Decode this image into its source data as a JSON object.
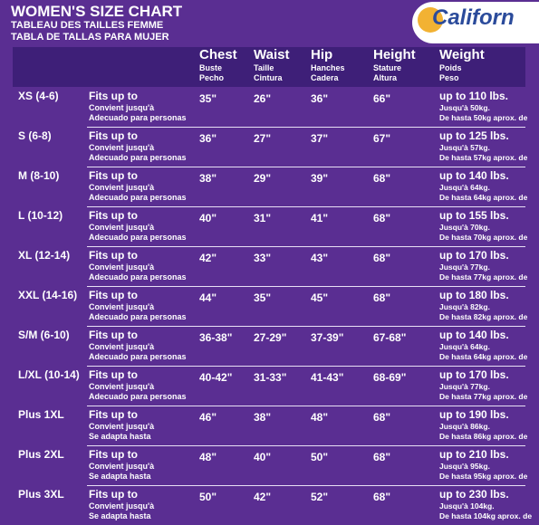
{
  "header": {
    "title": "WOMEN'S SIZE CHART",
    "subtitle_fr": "TABLEAU DES TAILLES FEMME",
    "subtitle_es": "TABLA DE TALLAS PARA MUJER",
    "logo": "Californ"
  },
  "columns": [
    {
      "name": "Chest",
      "fr": "Buste",
      "es": "Pecho"
    },
    {
      "name": "Waist",
      "fr": "Taille",
      "es": "Cintura"
    },
    {
      "name": "Hip",
      "fr": "Hanches",
      "es": "Cadera"
    },
    {
      "name": "Height",
      "fr": "Stature",
      "es": "Altura"
    },
    {
      "name": "Weight",
      "fr": "Poids",
      "es": "Peso"
    }
  ],
  "rows": [
    {
      "size": "XS (4-6)",
      "fits": [
        "Fits up to",
        "Convient jusqu'à",
        "Adecuado para personas"
      ],
      "chest": "35\"",
      "waist": "26\"",
      "hip": "36\"",
      "height": "66\"",
      "weight": [
        "up to 110 lbs.",
        "Jusqu'à 50kg.",
        "De hasta 50kg aprox. de"
      ]
    },
    {
      "size": "S (6-8)",
      "fits": [
        "Fits up to",
        "Convient jusqu'à",
        "Adecuado para personas"
      ],
      "chest": "36\"",
      "waist": "27\"",
      "hip": "37\"",
      "height": "67\"",
      "weight": [
        "up to 125 lbs.",
        "Jusqu'à 57kg.",
        "De hasta 57kg aprox. de"
      ]
    },
    {
      "size": "M (8-10)",
      "fits": [
        "Fits up to",
        "Convient jusqu'à",
        "Adecuado para personas"
      ],
      "chest": "38\"",
      "waist": "29\"",
      "hip": "39\"",
      "height": "68\"",
      "weight": [
        "up to 140 lbs.",
        "Jusqu'à 64kg.",
        "De hasta 64kg aprox. de"
      ]
    },
    {
      "size": "L (10-12)",
      "fits": [
        "Fits up to",
        "Convient jusqu'à",
        "Adecuado para personas"
      ],
      "chest": "40\"",
      "waist": "31\"",
      "hip": "41\"",
      "height": "68\"",
      "weight": [
        "up to 155 lbs.",
        "Jusqu'à 70kg.",
        "De hasta 70kg aprox. de"
      ]
    },
    {
      "size": "XL (12-14)",
      "fits": [
        "Fits up to",
        "Convient jusqu'à",
        "Adecuado para personas"
      ],
      "chest": "42\"",
      "waist": "33\"",
      "hip": "43\"",
      "height": "68\"",
      "weight": [
        "up to 170 lbs.",
        "Jusqu'à 77kg.",
        "De hasta 77kg aprox. de"
      ]
    },
    {
      "size": "XXL (14-16)",
      "fits": [
        "Fits up to",
        "Convient jusqu'à",
        "Adecuado para personas"
      ],
      "chest": "44\"",
      "waist": "35\"",
      "hip": "45\"",
      "height": "68\"",
      "weight": [
        "up to 180 lbs.",
        "Jusqu'à 82kg.",
        "De hasta 82kg aprox. de"
      ]
    },
    {
      "size": "S/M (6-10)",
      "fits": [
        "Fits up to",
        "Convient jusqu'à",
        "Adecuado para personas"
      ],
      "chest": "36-38\"",
      "waist": "27-29\"",
      "hip": "37-39\"",
      "height": "67-68\"",
      "weight": [
        "up to 140 lbs.",
        "Jusqu'à 64kg.",
        "De hasta 64kg aprox. de"
      ]
    },
    {
      "size": "L/XL (10-14)",
      "fits": [
        "Fits up to",
        "Convient jusqu'à",
        "Adecuado para personas"
      ],
      "chest": "40-42\"",
      "waist": "31-33\"",
      "hip": "41-43\"",
      "height": "68-69\"",
      "weight": [
        "up to 170 lbs.",
        "Jusqu'à 77kg.",
        "De hasta 77kg aprox. de"
      ]
    },
    {
      "size": "Plus 1XL",
      "fits": [
        "Fits up to",
        "Convient jusqu'à",
        "Se adapta hasta"
      ],
      "chest": "46\"",
      "waist": "38\"",
      "hip": "48\"",
      "height": "68\"",
      "weight": [
        "up to 190 lbs.",
        "Jusqu'à 86kg.",
        "De hasta 86kg aprox. de"
      ]
    },
    {
      "size": "Plus 2XL",
      "fits": [
        "Fits up to",
        "Convient jusqu'à",
        "Se adapta hasta"
      ],
      "chest": "48\"",
      "waist": "40\"",
      "hip": "50\"",
      "height": "68\"",
      "weight": [
        "up to 210 lbs.",
        "Jusqu'à 95kg.",
        "De hasta 95kg aprox. de"
      ]
    },
    {
      "size": "Plus 3XL",
      "fits": [
        "Fits up to",
        "Convient jusqu'à",
        "Se adapta hasta"
      ],
      "chest": "50\"",
      "waist": "42\"",
      "hip": "52\"",
      "height": "68\"",
      "weight": [
        "up to 230 lbs.",
        "Jusqu'à 104kg.",
        "De hasta 104kg aprox. de"
      ]
    }
  ]
}
